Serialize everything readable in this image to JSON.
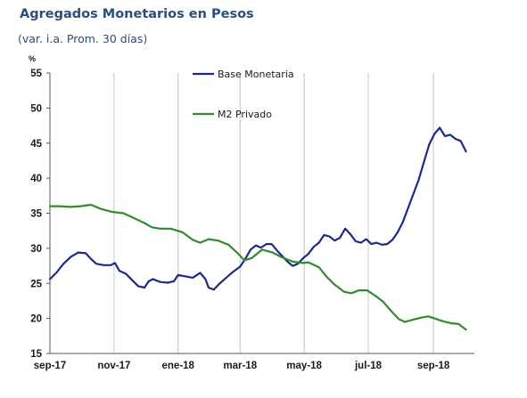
{
  "chart_data": {
    "type": "line",
    "title": "Agregados Monetarios en Pesos",
    "subtitle": "(var. i.a. Prom. 30 días)",
    "ylabel": "%",
    "xlabel": "",
    "ylim": [
      15,
      55
    ],
    "yticks": [
      "15",
      "20",
      "25",
      "30",
      "35",
      "40",
      "45",
      "50",
      "55"
    ],
    "xlim": [
      "2017-09-01",
      "2018-10-10"
    ],
    "xticks": [
      {
        "label": "sep-17",
        "date": "2017-09-01"
      },
      {
        "label": "nov-17",
        "date": "2017-11-01"
      },
      {
        "label": "ene-18",
        "date": "2018-01-01"
      },
      {
        "label": "mar-18",
        "date": "2018-03-01"
      },
      {
        "label": "may-18",
        "date": "2018-05-01"
      },
      {
        "label": "jul-18",
        "date": "2018-07-01"
      },
      {
        "label": "sep-18",
        "date": "2018-09-01"
      }
    ],
    "grid": "vertical",
    "legend_position": "top-center",
    "series": [
      {
        "name": "Base Monetaria",
        "color": "#1c2a86",
        "points": [
          [
            "2017-09-01",
            25.6
          ],
          [
            "2017-09-07",
            26.5
          ],
          [
            "2017-09-14",
            27.8
          ],
          [
            "2017-09-21",
            28.8
          ],
          [
            "2017-09-28",
            29.4
          ],
          [
            "2017-10-05",
            29.3
          ],
          [
            "2017-10-10",
            28.5
          ],
          [
            "2017-10-15",
            27.8
          ],
          [
            "2017-10-22",
            27.6
          ],
          [
            "2017-10-29",
            27.6
          ],
          [
            "2017-11-02",
            27.9
          ],
          [
            "2017-11-06",
            26.8
          ],
          [
            "2017-11-12",
            26.4
          ],
          [
            "2017-11-18",
            25.5
          ],
          [
            "2017-11-24",
            24.6
          ],
          [
            "2017-11-30",
            24.4
          ],
          [
            "2017-12-04",
            25.3
          ],
          [
            "2017-12-08",
            25.6
          ],
          [
            "2017-12-15",
            25.2
          ],
          [
            "2017-12-22",
            25.1
          ],
          [
            "2017-12-28",
            25.3
          ],
          [
            "2018-01-01",
            26.2
          ],
          [
            "2018-01-08",
            26.0
          ],
          [
            "2018-01-15",
            25.8
          ],
          [
            "2018-01-22",
            26.5
          ],
          [
            "2018-01-27",
            25.6
          ],
          [
            "2018-01-30",
            24.4
          ],
          [
            "2018-02-04",
            24.1
          ],
          [
            "2018-02-09",
            24.9
          ],
          [
            "2018-02-15",
            25.7
          ],
          [
            "2018-02-22",
            26.6
          ],
          [
            "2018-03-01",
            27.4
          ],
          [
            "2018-03-06",
            28.5
          ],
          [
            "2018-03-11",
            29.8
          ],
          [
            "2018-03-16",
            30.4
          ],
          [
            "2018-03-21",
            30.1
          ],
          [
            "2018-03-26",
            30.6
          ],
          [
            "2018-03-31",
            30.6
          ],
          [
            "2018-04-05",
            29.7
          ],
          [
            "2018-04-10",
            28.9
          ],
          [
            "2018-04-15",
            28.1
          ],
          [
            "2018-04-20",
            27.5
          ],
          [
            "2018-04-25",
            27.8
          ],
          [
            "2018-04-30",
            28.6
          ],
          [
            "2018-05-05",
            29.2
          ],
          [
            "2018-05-10",
            30.2
          ],
          [
            "2018-05-15",
            30.8
          ],
          [
            "2018-05-20",
            31.9
          ],
          [
            "2018-05-25",
            31.7
          ],
          [
            "2018-05-30",
            31.1
          ],
          [
            "2018-06-04",
            31.5
          ],
          [
            "2018-06-09",
            32.8
          ],
          [
            "2018-06-14",
            32.0
          ],
          [
            "2018-06-19",
            31.0
          ],
          [
            "2018-06-24",
            30.8
          ],
          [
            "2018-06-29",
            31.3
          ],
          [
            "2018-07-04",
            30.6
          ],
          [
            "2018-07-09",
            30.8
          ],
          [
            "2018-07-14",
            30.5
          ],
          [
            "2018-07-19",
            30.6
          ],
          [
            "2018-07-24",
            31.2
          ],
          [
            "2018-07-29",
            32.3
          ],
          [
            "2018-08-03",
            33.8
          ],
          [
            "2018-08-08",
            35.8
          ],
          [
            "2018-08-13",
            37.8
          ],
          [
            "2018-08-18",
            39.8
          ],
          [
            "2018-08-23",
            42.3
          ],
          [
            "2018-08-28",
            44.8
          ],
          [
            "2018-09-02",
            46.3
          ],
          [
            "2018-09-07",
            47.2
          ],
          [
            "2018-09-12",
            46.0
          ],
          [
            "2018-09-17",
            46.2
          ],
          [
            "2018-09-22",
            45.6
          ],
          [
            "2018-09-27",
            45.3
          ],
          [
            "2018-10-02",
            43.8
          ]
        ]
      },
      {
        "name": "M2 Privado",
        "color": "#2e8b2e",
        "points": [
          [
            "2017-09-01",
            36.0
          ],
          [
            "2017-09-10",
            36.0
          ],
          [
            "2017-09-20",
            35.9
          ],
          [
            "2017-09-30",
            36.0
          ],
          [
            "2017-10-10",
            36.2
          ],
          [
            "2017-10-20",
            35.6
          ],
          [
            "2017-10-30",
            35.2
          ],
          [
            "2017-11-10",
            35.0
          ],
          [
            "2017-11-20",
            34.3
          ],
          [
            "2017-11-30",
            33.6
          ],
          [
            "2017-12-07",
            33.0
          ],
          [
            "2017-12-15",
            32.8
          ],
          [
            "2017-12-25",
            32.8
          ],
          [
            "2018-01-05",
            32.3
          ],
          [
            "2018-01-15",
            31.2
          ],
          [
            "2018-01-22",
            30.8
          ],
          [
            "2018-01-30",
            31.3
          ],
          [
            "2018-02-08",
            31.1
          ],
          [
            "2018-02-18",
            30.5
          ],
          [
            "2018-02-26",
            29.4
          ],
          [
            "2018-03-05",
            28.3
          ],
          [
            "2018-03-12",
            28.6
          ],
          [
            "2018-03-22",
            29.8
          ],
          [
            "2018-04-01",
            29.4
          ],
          [
            "2018-04-10",
            28.7
          ],
          [
            "2018-04-20",
            28.1
          ],
          [
            "2018-04-30",
            27.9
          ],
          [
            "2018-05-05",
            28.0
          ],
          [
            "2018-05-15",
            27.3
          ],
          [
            "2018-05-22",
            26.0
          ],
          [
            "2018-05-30",
            24.8
          ],
          [
            "2018-06-08",
            23.8
          ],
          [
            "2018-06-15",
            23.6
          ],
          [
            "2018-06-22",
            24.0
          ],
          [
            "2018-06-30",
            24.0
          ],
          [
            "2018-07-08",
            23.2
          ],
          [
            "2018-07-15",
            22.4
          ],
          [
            "2018-07-22",
            21.2
          ],
          [
            "2018-07-30",
            19.9
          ],
          [
            "2018-08-05",
            19.5
          ],
          [
            "2018-08-12",
            19.8
          ],
          [
            "2018-08-20",
            20.1
          ],
          [
            "2018-08-27",
            20.3
          ],
          [
            "2018-09-02",
            20.0
          ],
          [
            "2018-09-10",
            19.6
          ],
          [
            "2018-09-18",
            19.3
          ],
          [
            "2018-09-25",
            19.2
          ],
          [
            "2018-10-02",
            18.4
          ]
        ]
      }
    ]
  }
}
